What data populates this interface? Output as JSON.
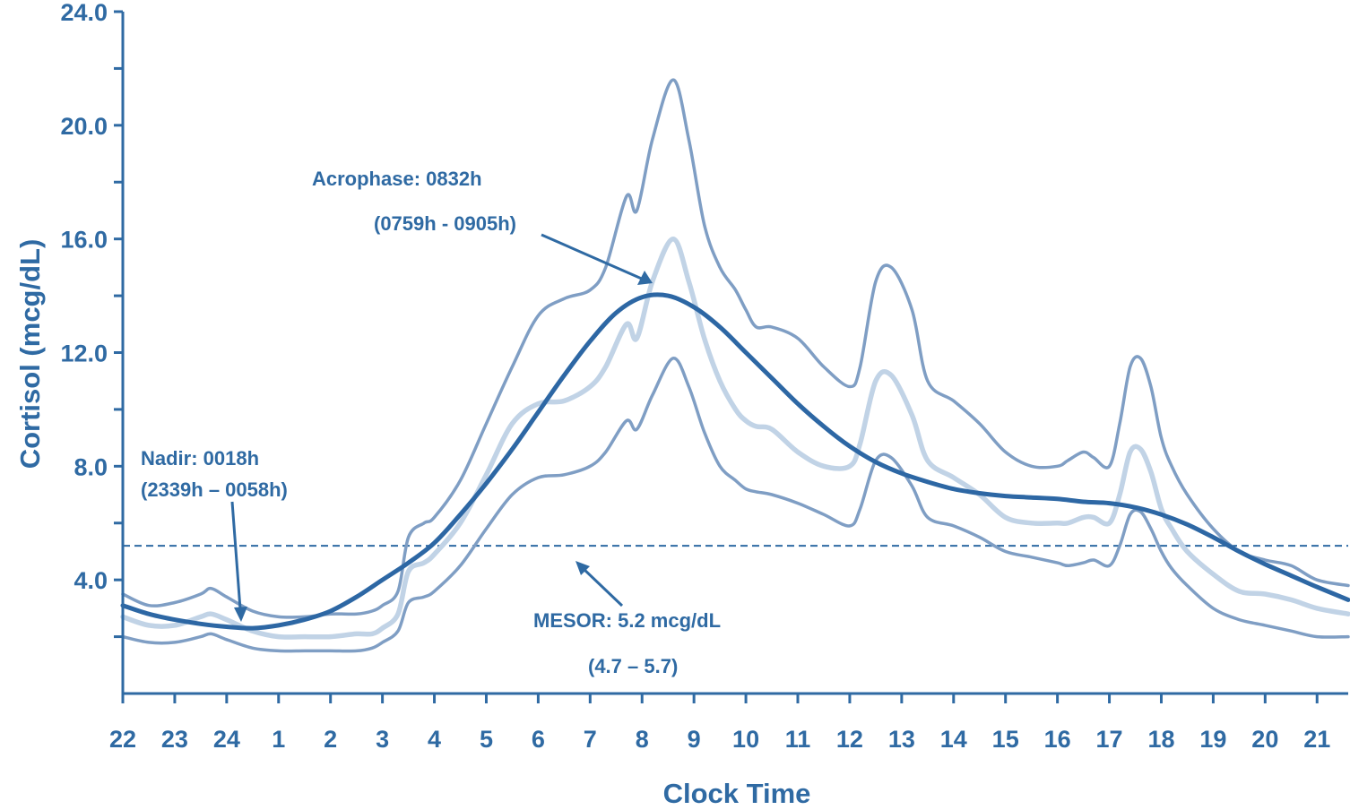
{
  "chart_data": {
    "type": "line",
    "xlabel": "Clock Time",
    "ylabel": "Cortisol (mcg/dL)",
    "ylim": [
      0,
      24
    ],
    "xlim": [
      22,
      45.6
    ],
    "x_ticks": [
      22,
      23,
      24,
      25,
      26,
      27,
      28,
      29,
      30,
      31,
      32,
      33,
      34,
      35,
      36,
      37,
      38,
      39,
      40,
      41,
      42,
      43,
      44,
      45
    ],
    "x_tick_labels": [
      "22",
      "23",
      "24",
      "1",
      "2",
      "3",
      "4",
      "5",
      "6",
      "7",
      "8",
      "9",
      "10",
      "11",
      "12",
      "13",
      "14",
      "15",
      "16",
      "17",
      "18",
      "19",
      "20",
      "21"
    ],
    "y_ticks": [
      4,
      8,
      12,
      16,
      20,
      24
    ],
    "y_tick_labels": [
      "4.0",
      "8.0",
      "12.0",
      "16.0",
      "20.0",
      "24.0"
    ],
    "grid": false,
    "legend": "none",
    "colors": {
      "axis": "#2f6aa3",
      "fit": "#2d67a4",
      "band": "#7f9ec4",
      "mean": "#c1d3e6",
      "mesor": "#2f6aa3"
    },
    "mesor": 5.2,
    "series": [
      {
        "role": "upper-band",
        "x": [
          22,
          22.5,
          23,
          23.5,
          23.7,
          24,
          24.5,
          25,
          25.5,
          26,
          26.5,
          26.8,
          27,
          27.3,
          27.5,
          27.8,
          28,
          28.5,
          29,
          29.5,
          30,
          30.5,
          31,
          31.3,
          31.7,
          31.9,
          32.2,
          32.6,
          32.9,
          33.2,
          33.5,
          33.8,
          34,
          34.2,
          34.5,
          35,
          35.5,
          36,
          36.2,
          36.5,
          36.8,
          37.2,
          37.5,
          38,
          38.5,
          39,
          39.5,
          40,
          40.2,
          40.5,
          40.7,
          41,
          41.2,
          41.4,
          41.6,
          41.8,
          42,
          42.2,
          42.5,
          43,
          43.5,
          44,
          44.5,
          45,
          45.6
        ],
        "values": [
          3.5,
          3.1,
          3.2,
          3.5,
          3.7,
          3.4,
          2.9,
          2.7,
          2.7,
          2.8,
          2.8,
          2.9,
          3.1,
          3.6,
          5.5,
          6.0,
          6.2,
          7.5,
          9.5,
          11.5,
          13.3,
          13.9,
          14.2,
          15.0,
          17.5,
          17.0,
          19.5,
          21.6,
          19.5,
          16.5,
          15.0,
          14.2,
          13.5,
          12.9,
          12.9,
          12.5,
          11.5,
          10.8,
          11.5,
          14.5,
          15.0,
          13.5,
          11.0,
          10.3,
          9.5,
          8.5,
          8.0,
          8.0,
          8.2,
          8.5,
          8.3,
          8.0,
          9.5,
          11.5,
          11.8,
          10.8,
          9.0,
          8.0,
          7.0,
          5.8,
          5.0,
          4.7,
          4.5,
          4.0,
          3.8
        ]
      },
      {
        "role": "mean",
        "x": [
          22,
          22.5,
          23,
          23.5,
          23.7,
          24,
          24.5,
          25,
          25.5,
          26,
          26.5,
          26.8,
          27,
          27.3,
          27.5,
          27.8,
          28,
          28.5,
          29,
          29.5,
          30,
          30.5,
          31,
          31.3,
          31.7,
          31.9,
          32.2,
          32.6,
          32.9,
          33.2,
          33.5,
          33.8,
          34,
          34.2,
          34.5,
          35,
          35.5,
          36,
          36.2,
          36.5,
          36.8,
          37.2,
          37.5,
          38,
          38.5,
          39,
          39.5,
          40,
          40.2,
          40.5,
          40.7,
          41,
          41.2,
          41.4,
          41.6,
          41.8,
          42,
          42.2,
          42.5,
          43,
          43.5,
          44,
          44.5,
          45,
          45.6
        ],
        "values": [
          2.7,
          2.4,
          2.4,
          2.7,
          2.8,
          2.6,
          2.2,
          2.0,
          2.0,
          2.0,
          2.1,
          2.1,
          2.3,
          2.8,
          4.3,
          4.6,
          4.9,
          6.0,
          7.7,
          9.5,
          10.2,
          10.3,
          10.8,
          11.5,
          13.0,
          12.5,
          14.5,
          16.0,
          14.5,
          12.5,
          11.0,
          10.0,
          9.6,
          9.4,
          9.3,
          8.5,
          8.0,
          8.0,
          8.8,
          11.0,
          11.2,
          9.8,
          8.2,
          7.6,
          7.0,
          6.2,
          6.0,
          6.0,
          6.0,
          6.2,
          6.2,
          6.0,
          7.0,
          8.5,
          8.6,
          7.8,
          6.5,
          5.8,
          5.0,
          4.2,
          3.6,
          3.5,
          3.3,
          3.0,
          2.8
        ]
      },
      {
        "role": "lower-band",
        "x": [
          22,
          22.5,
          23,
          23.5,
          23.7,
          24,
          24.5,
          25,
          25.5,
          26,
          26.5,
          26.8,
          27,
          27.3,
          27.5,
          27.8,
          28,
          28.5,
          29,
          29.5,
          30,
          30.5,
          31,
          31.3,
          31.7,
          31.9,
          32.2,
          32.6,
          32.9,
          33.2,
          33.5,
          33.8,
          34,
          34.2,
          34.5,
          35,
          35.5,
          36,
          36.2,
          36.5,
          36.8,
          37.2,
          37.5,
          38,
          38.5,
          39,
          39.5,
          40,
          40.2,
          40.5,
          40.7,
          41,
          41.2,
          41.4,
          41.6,
          41.8,
          42,
          42.2,
          42.5,
          43,
          43.5,
          44,
          44.5,
          45,
          45.6
        ],
        "values": [
          2.0,
          1.8,
          1.8,
          2.0,
          2.1,
          1.9,
          1.6,
          1.5,
          1.5,
          1.5,
          1.5,
          1.6,
          1.8,
          2.2,
          3.2,
          3.4,
          3.6,
          4.5,
          5.8,
          7.0,
          7.6,
          7.7,
          8.0,
          8.5,
          9.6,
          9.3,
          10.5,
          11.8,
          10.8,
          9.2,
          8.0,
          7.5,
          7.2,
          7.1,
          7.0,
          6.7,
          6.3,
          5.9,
          6.5,
          8.2,
          8.3,
          7.3,
          6.2,
          5.9,
          5.5,
          5.0,
          4.8,
          4.6,
          4.5,
          4.6,
          4.7,
          4.5,
          5.2,
          6.3,
          6.4,
          5.8,
          5.0,
          4.4,
          3.8,
          3.0,
          2.6,
          2.4,
          2.2,
          2.0,
          2.0
        ]
      },
      {
        "role": "cosinor-fit",
        "x": [
          22,
          22.5,
          23,
          23.5,
          24,
          24.5,
          25,
          25.5,
          26,
          26.5,
          27,
          27.5,
          28,
          28.5,
          29,
          29.5,
          30,
          30.5,
          31,
          31.5,
          32,
          32.5,
          33,
          33.5,
          34,
          34.5,
          35,
          35.5,
          36,
          36.5,
          37,
          37.5,
          38,
          38.5,
          39,
          39.5,
          40,
          40.5,
          41,
          41.5,
          42,
          42.5,
          43,
          43.5,
          44,
          44.5,
          45,
          45.6
        ],
        "values": [
          3.1,
          2.8,
          2.6,
          2.45,
          2.35,
          2.3,
          2.4,
          2.6,
          2.9,
          3.4,
          4.0,
          4.6,
          5.3,
          6.3,
          7.4,
          8.6,
          9.9,
          11.2,
          12.4,
          13.4,
          13.95,
          14.0,
          13.6,
          12.9,
          12.0,
          11.1,
          10.2,
          9.4,
          8.7,
          8.15,
          7.75,
          7.45,
          7.2,
          7.05,
          6.95,
          6.9,
          6.85,
          6.75,
          6.7,
          6.55,
          6.3,
          5.95,
          5.5,
          5.0,
          4.55,
          4.15,
          3.75,
          3.3
        ]
      }
    ],
    "annotations": [
      {
        "key": "acrophase",
        "line1": "Acrophase: 0832h",
        "line2": "(0759h - 0905h)"
      },
      {
        "key": "nadir",
        "line1": "Nadir: 0018h",
        "line2": "(2339h – 0058h)"
      },
      {
        "key": "mesor",
        "line1": "MESOR: 5.2 mcg/dL",
        "line2": "(4.7 –  5.7)"
      }
    ]
  }
}
